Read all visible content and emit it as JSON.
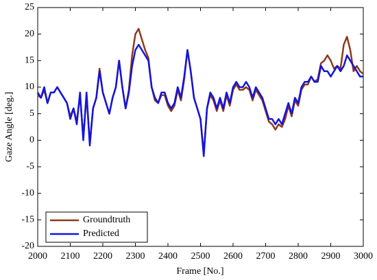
{
  "chart_data": {
    "type": "line",
    "xlabel": "Frame [No.]",
    "ylabel": "Gaze Angle [deg.]",
    "x": [
      2000,
      2010,
      2020,
      2030,
      2040,
      2050,
      2060,
      2070,
      2080,
      2090,
      2100,
      2110,
      2120,
      2130,
      2140,
      2150,
      2160,
      2170,
      2180,
      2190,
      2200,
      2210,
      2220,
      2230,
      2240,
      2250,
      2260,
      2270,
      2280,
      2290,
      2300,
      2310,
      2320,
      2330,
      2340,
      2350,
      2360,
      2370,
      2380,
      2390,
      2400,
      2410,
      2420,
      2430,
      2440,
      2450,
      2460,
      2470,
      2480,
      2490,
      2500,
      2510,
      2520,
      2530,
      2540,
      2550,
      2560,
      2570,
      2580,
      2590,
      2600,
      2610,
      2620,
      2630,
      2640,
      2650,
      2660,
      2670,
      2680,
      2690,
      2700,
      2710,
      2720,
      2730,
      2740,
      2750,
      2760,
      2770,
      2780,
      2790,
      2800,
      2810,
      2820,
      2830,
      2840,
      2850,
      2860,
      2870,
      2880,
      2890,
      2900,
      2910,
      2920,
      2930,
      2940,
      2950,
      2960,
      2970,
      2980,
      2990,
      3000
    ],
    "series": [
      {
        "name": "Groundtruth",
        "color": "#8b3a1e",
        "values": [
          8.5,
          8,
          9.5,
          7,
          9,
          9,
          10,
          9,
          8,
          7,
          4.5,
          6,
          3.5,
          8.5,
          0.5,
          8.5,
          -0.5,
          6,
          8,
          13.5,
          9,
          7,
          5,
          8,
          10,
          15,
          10,
          6,
          9.5,
          16,
          20,
          21,
          19,
          17,
          15.5,
          10,
          7.5,
          7,
          8.5,
          8.5,
          6.5,
          5.5,
          6.5,
          9.5,
          7.5,
          11.5,
          17,
          13,
          8,
          6,
          4,
          -2.5,
          6,
          8.5,
          7.5,
          5.5,
          7.5,
          5.5,
          8.5,
          6.5,
          9.5,
          10.5,
          9.5,
          9.5,
          10,
          9.5,
          7.5,
          9.5,
          8.5,
          7.5,
          5.5,
          3.5,
          3,
          2,
          3,
          2.5,
          4,
          6.5,
          4.5,
          7.5,
          6.5,
          9.5,
          10.5,
          10.5,
          12,
          11,
          11.5,
          14.5,
          15,
          16,
          15,
          13.5,
          14,
          13.5,
          18,
          19.5,
          17,
          13,
          14,
          13,
          12.5
        ]
      },
      {
        "name": "Predicted",
        "color": "#1414dc",
        "values": [
          9,
          8,
          10,
          7,
          9,
          9,
          10,
          9,
          8,
          7,
          4,
          6,
          3,
          9,
          0,
          9,
          -1,
          6,
          8,
          13,
          9,
          7,
          5,
          8,
          10,
          15,
          10,
          6,
          9,
          14,
          17,
          18,
          17,
          16,
          15,
          10,
          8,
          7,
          9,
          9,
          7,
          6,
          7,
          10,
          8,
          12,
          17,
          13,
          8,
          6,
          4,
          -3,
          6,
          9,
          8,
          6,
          8,
          6,
          9,
          7,
          10,
          11,
          10,
          10,
          11,
          10,
          8,
          10,
          9,
          8,
          6,
          4,
          4,
          3,
          4,
          3,
          5,
          7,
          5,
          8,
          7,
          10,
          11,
          11,
          12,
          11,
          11,
          14,
          13,
          13,
          12,
          13,
          14,
          13,
          14,
          16,
          15,
          14,
          13,
          12,
          12
        ]
      }
    ],
    "xlim": [
      2000,
      3000
    ],
    "xticks": [
      2000,
      2100,
      2200,
      2300,
      2400,
      2500,
      2600,
      2700,
      2800,
      2900,
      3000
    ],
    "ylim": [
      -20,
      25
    ],
    "yticks": [
      -20,
      -15,
      -10,
      -5,
      0,
      5,
      10,
      15,
      20,
      25
    ],
    "grid": false,
    "legend": "lower left"
  }
}
